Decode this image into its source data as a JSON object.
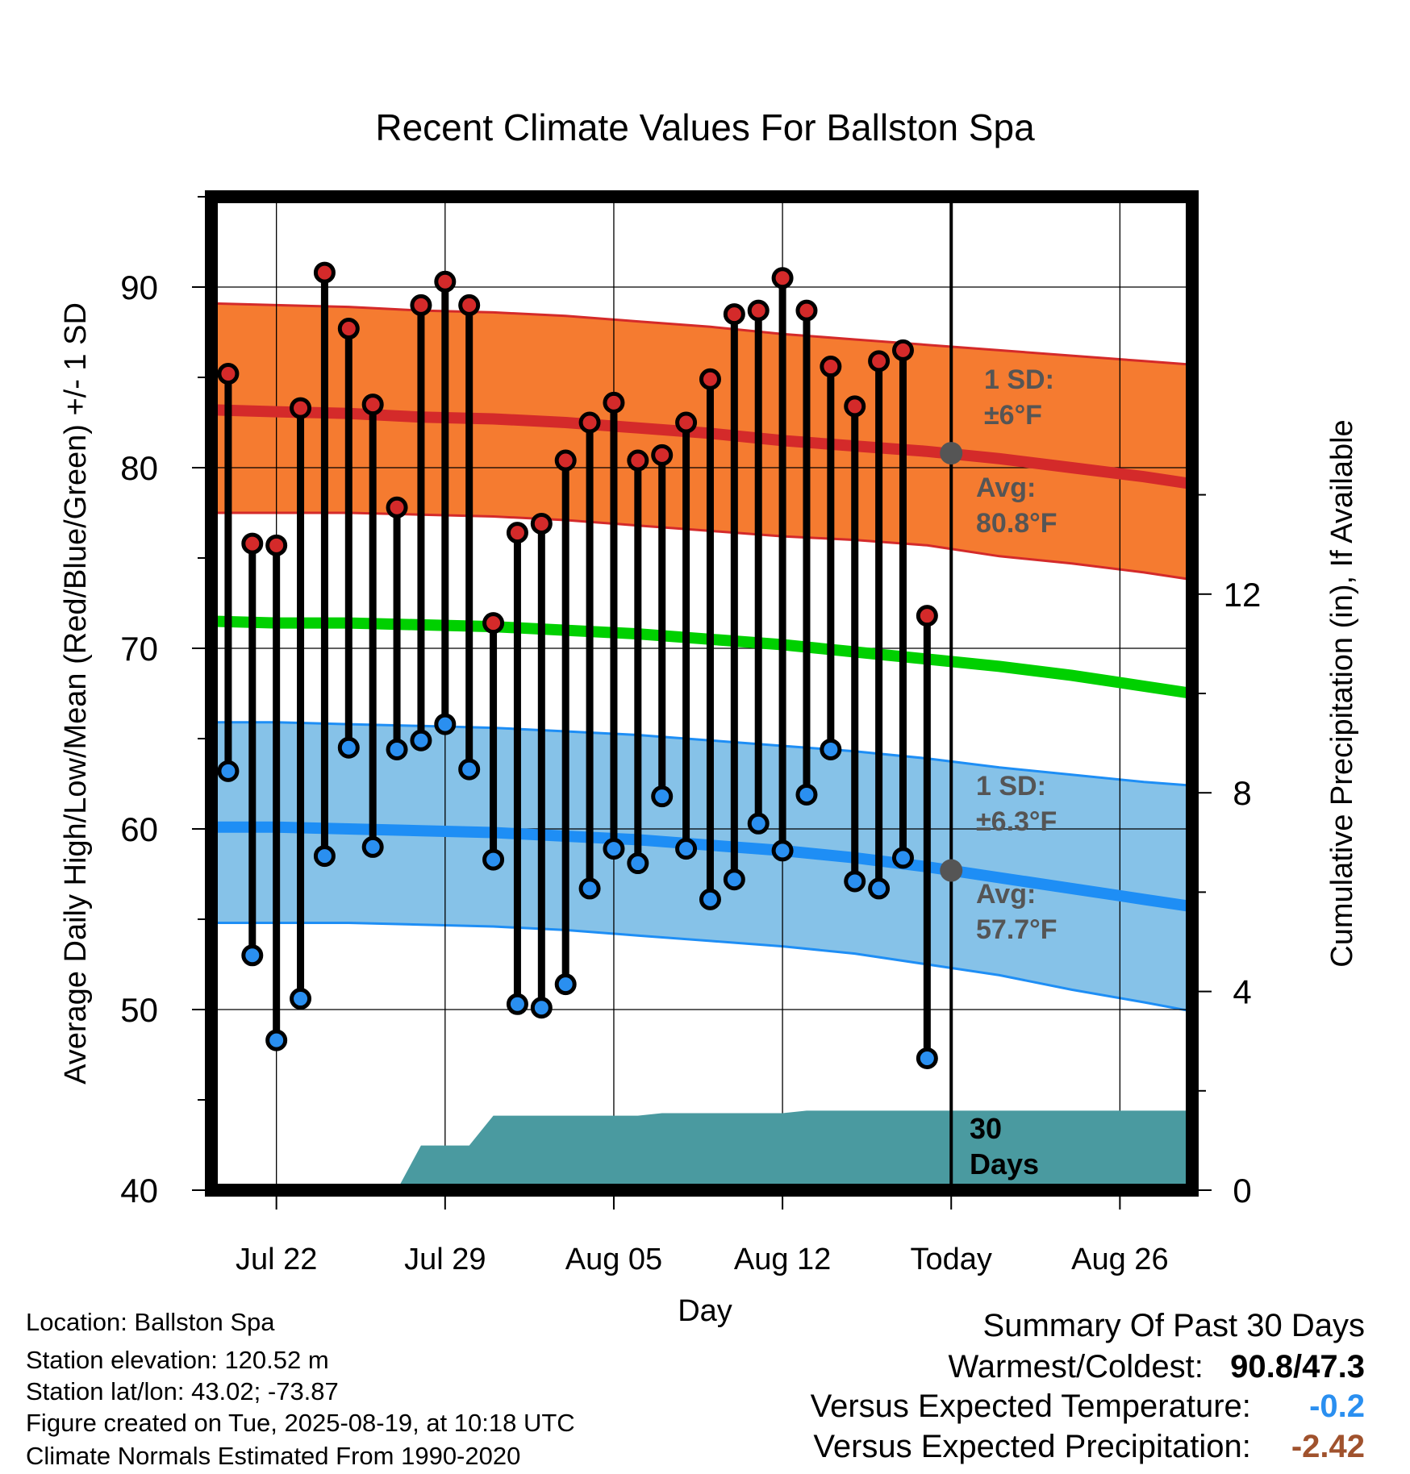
{
  "chart_data": {
    "type": "line",
    "title": "Recent Climate Values For Ballston Spa",
    "xlabel": "Day",
    "ylabel": "Average Daily High/Low/Mean (Red/Blue/Green) +/- 1 SD",
    "ylabel_right": "Cumulative Precipitation (in), If Available",
    "ylim": [
      40,
      95
    ],
    "ylim_right": [
      0,
      20
    ],
    "x_range": [
      -30.7,
      10
    ],
    "x_ticks": [
      {
        "label": "Jul 22",
        "day": -28
      },
      {
        "label": "Jul 29",
        "day": -21
      },
      {
        "label": "Aug 05",
        "day": -14
      },
      {
        "label": "Aug 12",
        "day": -7
      },
      {
        "label": "Today",
        "day": 0
      },
      {
        "label": "Aug 26",
        "day": 7
      }
    ],
    "y_ticks": [
      40,
      50,
      60,
      70,
      80,
      90
    ],
    "y_ticks_right": [
      0,
      4,
      8,
      12
    ],
    "grid": true,
    "series": [
      {
        "name": "High",
        "color": "#d42a2a",
        "x": [
          -30,
          -29,
          -28,
          -27,
          -26,
          -25,
          -24,
          -23,
          -22,
          -21,
          -20,
          -19,
          -18,
          -17,
          -16,
          -15,
          -14,
          -13,
          -12,
          -11,
          -10,
          -9,
          -8,
          -7,
          -6,
          -5,
          -4,
          -3,
          -2,
          -1
        ],
        "values": [
          85.2,
          75.8,
          75.7,
          83.3,
          90.8,
          87.7,
          83.5,
          77.8,
          89.0,
          90.3,
          89.0,
          71.4,
          76.4,
          76.9,
          80.4,
          82.5,
          83.6,
          80.4,
          80.7,
          82.5,
          84.9,
          88.5,
          88.7,
          90.5,
          88.7,
          85.6,
          83.4,
          85.9,
          86.5,
          71.8
        ]
      },
      {
        "name": "Low",
        "color": "#2a8ff0",
        "x": [
          -30,
          -29,
          -28,
          -27,
          -26,
          -25,
          -24,
          -23,
          -22,
          -21,
          -20,
          -19,
          -18,
          -17,
          -16,
          -15,
          -14,
          -13,
          -12,
          -11,
          -10,
          -9,
          -8,
          -7,
          -6,
          -5,
          -4,
          -3,
          -2,
          -1
        ],
        "values": [
          63.2,
          53.0,
          48.3,
          50.6,
          58.5,
          64.5,
          59.0,
          64.4,
          64.9,
          65.8,
          63.3,
          58.3,
          50.3,
          50.1,
          51.4,
          56.7,
          58.9,
          58.1,
          61.8,
          58.9,
          56.1,
          57.2,
          60.3,
          58.8,
          61.9,
          64.4,
          57.1,
          56.7,
          58.4,
          47.3
        ]
      }
    ],
    "normals": {
      "x": [
        -30.7,
        -28,
        -25,
        -22,
        -19,
        -16,
        -13,
        -10,
        -7,
        -4,
        -1,
        2,
        5,
        8,
        10
      ],
      "high_avg": [
        83.2,
        83.1,
        83.0,
        82.8,
        82.7,
        82.5,
        82.2,
        81.9,
        81.5,
        81.2,
        80.9,
        80.5,
        80.0,
        79.5,
        79.1
      ],
      "high_upper": [
        89.1,
        89.0,
        88.9,
        88.7,
        88.6,
        88.4,
        88.1,
        87.8,
        87.4,
        87.1,
        86.8,
        86.5,
        86.2,
        85.9,
        85.7
      ],
      "high_lower": [
        77.5,
        77.5,
        77.5,
        77.4,
        77.3,
        77.1,
        76.8,
        76.5,
        76.2,
        76.0,
        75.7,
        75.1,
        74.7,
        74.2,
        73.8
      ],
      "mean_avg": [
        71.5,
        71.4,
        71.4,
        71.3,
        71.2,
        71.0,
        70.8,
        70.5,
        70.2,
        69.8,
        69.4,
        69.0,
        68.5,
        67.9,
        67.5
      ],
      "low_avg": [
        60.1,
        60.1,
        60.0,
        59.9,
        59.8,
        59.6,
        59.4,
        59.1,
        58.8,
        58.4,
        57.9,
        57.3,
        56.7,
        56.1,
        55.7
      ],
      "low_upper": [
        65.9,
        65.9,
        65.8,
        65.7,
        65.6,
        65.4,
        65.2,
        64.9,
        64.6,
        64.3,
        63.9,
        63.4,
        63.0,
        62.6,
        62.4
      ],
      "low_lower": [
        54.8,
        54.8,
        54.8,
        54.7,
        54.6,
        54.4,
        54.1,
        53.8,
        53.5,
        53.1,
        52.5,
        51.9,
        51.1,
        50.4,
        49.9
      ]
    },
    "precipitation": {
      "x": [
        -23,
        -22,
        -21,
        -20,
        -19,
        -18,
        -17,
        -16,
        -15,
        -14,
        -13,
        -12,
        -11,
        -10,
        -9,
        -8,
        -7,
        -6,
        -5,
        -4,
        -3,
        -2,
        -1,
        0,
        10
      ],
      "values": [
        0,
        0.9,
        0.9,
        0.9,
        1.5,
        1.5,
        1.5,
        1.5,
        1.5,
        1.5,
        1.5,
        1.55,
        1.55,
        1.55,
        1.55,
        1.55,
        1.55,
        1.6,
        1.6,
        1.6,
        1.6,
        1.6,
        1.6,
        1.6,
        1.6
      ]
    },
    "today_line": 0,
    "annotations": {
      "high_sd": "1 SD:",
      "high_sd_value": "±6°F",
      "high_avg_label": "Avg:",
      "high_avg_value": "80.8°F",
      "low_sd": "1 SD:",
      "low_sd_value": "±6.3°F",
      "low_avg_label": "Avg:",
      "low_avg_value": "57.7°F",
      "period_num": "30",
      "period_unit": "Days",
      "high_today": 80.8,
      "low_today": 57.7
    },
    "colors": {
      "high_band": "#f57b30",
      "high_line": "#d42a2a",
      "mean_line": "#00d000",
      "low_band": "#86c2e8",
      "low_line": "#1e8ef5",
      "precip": "#4a9aa0",
      "annot": "#555555"
    }
  },
  "footer": {
    "location": "Location: Ballston Spa",
    "elevation": "Station elevation: 120.52 m",
    "latlon": "Station lat/lon: 43.02; -73.87",
    "created": "Figure created on Tue, 2025-08-19, at 10:18 UTC",
    "normals": "Climate Normals Estimated From 1990-2020"
  },
  "summary": {
    "title": "Summary Of Past 30 Days",
    "warm_cold_label": "Warmest/Coldest:",
    "warm_cold_value": "90.8/47.3",
    "temp_label": "Versus Expected Temperature:",
    "temp_value": "-0.2",
    "temp_color": "#2a8ff0",
    "precip_label": "Versus Expected Precipitation:",
    "precip_value": "-2.42",
    "precip_color": "#a0522d"
  }
}
